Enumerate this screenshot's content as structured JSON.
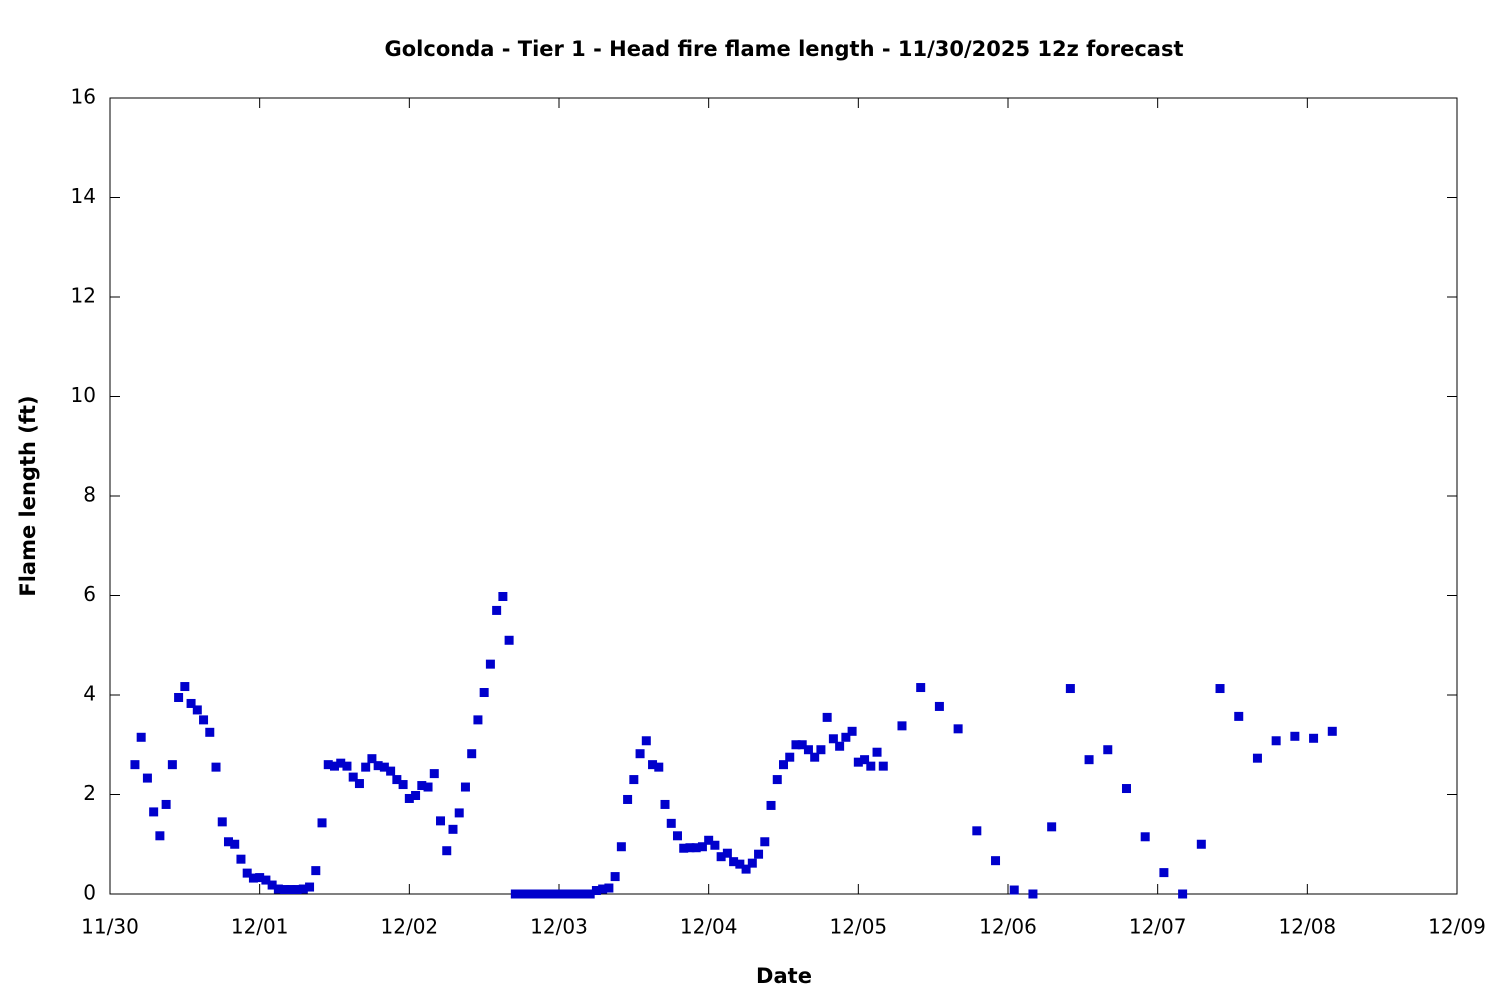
{
  "chart_data": {
    "type": "scatter",
    "title": "Golconda - Tier 1 - Head fire flame length - 11/30/2025 12z forecast",
    "x_label": "Date",
    "y_label": "Flame length (ft)",
    "color": "#0000cc",
    "x": [
      4,
      5,
      6,
      7,
      8,
      9,
      10,
      11,
      12,
      13,
      14,
      15,
      16,
      17,
      18,
      19,
      20,
      21,
      22,
      23,
      24,
      25,
      26,
      27,
      28,
      29,
      30,
      31,
      32,
      33,
      34,
      35,
      36,
      37,
      38,
      39,
      40,
      41,
      42,
      43,
      44,
      45,
      46,
      47,
      48,
      49,
      50,
      51,
      52,
      53,
      54,
      55,
      56,
      57,
      58,
      59,
      60,
      61,
      62,
      63,
      64,
      65,
      66,
      67,
      68,
      69,
      70,
      71,
      72,
      73,
      74,
      75,
      76,
      77,
      78,
      79,
      80,
      81,
      82,
      83,
      84,
      85,
      86,
      87,
      88,
      89,
      90,
      91,
      92,
      93,
      94,
      95,
      96,
      97,
      98,
      99,
      100,
      101,
      102,
      103,
      104,
      105,
      106,
      107,
      108,
      109,
      110,
      111,
      112,
      113,
      114,
      115,
      116,
      117,
      118,
      119,
      120,
      121,
      122,
      123,
      124,
      127,
      130,
      133,
      136,
      139,
      142,
      145,
      148,
      151,
      154,
      157,
      160,
      163,
      166,
      169,
      172,
      175,
      178,
      181,
      184,
      187,
      190,
      193,
      196
    ],
    "values": [
      2.6,
      3.15,
      2.33,
      1.65,
      1.17,
      1.8,
      2.6,
      3.95,
      4.17,
      3.83,
      3.7,
      3.5,
      3.25,
      2.55,
      1.45,
      1.05,
      1.0,
      0.7,
      0.42,
      0.32,
      0.33,
      0.28,
      0.18,
      0.1,
      0.09,
      0.09,
      0.09,
      0.1,
      0.14,
      0.47,
      1.43,
      2.6,
      2.57,
      2.63,
      2.57,
      2.35,
      2.22,
      2.55,
      2.72,
      2.58,
      2.55,
      2.47,
      2.3,
      2.2,
      1.92,
      1.98,
      2.18,
      2.15,
      2.42,
      1.47,
      0.87,
      1.3,
      1.63,
      2.15,
      2.82,
      3.5,
      4.05,
      4.62,
      5.7,
      5.98,
      5.1,
      0,
      0,
      0,
      0,
      0,
      0,
      0,
      0,
      0,
      0,
      0,
      0,
      0,
      0.07,
      0.1,
      0.12,
      0.35,
      0.95,
      1.9,
      2.3,
      2.82,
      3.08,
      2.6,
      2.55,
      1.8,
      1.42,
      1.17,
      0.92,
      0.93,
      0.93,
      0.95,
      1.08,
      0.98,
      0.75,
      0.82,
      0.65,
      0.6,
      0.5,
      0.62,
      0.8,
      1.05,
      1.78,
      2.3,
      2.6,
      2.75,
      3.0,
      3.0,
      2.9,
      2.75,
      2.9,
      3.55,
      3.12,
      2.97,
      3.15,
      3.27,
      2.65,
      2.7,
      2.57,
      2.85,
      2.57,
      3.38,
      4.15,
      3.77,
      3.32,
      1.27,
      0.67,
      0.08,
      0,
      1.35,
      4.13,
      2.7,
      2.9,
      2.12,
      1.15,
      0.43,
      0,
      1.0,
      4.13,
      3.57,
      2.73,
      3.08,
      3.17,
      3.13,
      3.27
    ],
    "xlim": [
      0,
      216
    ],
    "xticks": [
      {
        "value": 0,
        "label": "11/30"
      },
      {
        "value": 24,
        "label": "12/01"
      },
      {
        "value": 48,
        "label": "12/02"
      },
      {
        "value": 72,
        "label": "12/03"
      },
      {
        "value": 96,
        "label": "12/04"
      },
      {
        "value": 120,
        "label": "12/05"
      },
      {
        "value": 144,
        "label": "12/06"
      },
      {
        "value": 168,
        "label": "12/07"
      },
      {
        "value": 192,
        "label": "12/08"
      },
      {
        "value": 216,
        "label": "12/09"
      }
    ],
    "ylim": [
      0,
      16
    ],
    "yticks": [
      0,
      2,
      4,
      6,
      8,
      10,
      12,
      14,
      16
    ],
    "grid": false
  }
}
